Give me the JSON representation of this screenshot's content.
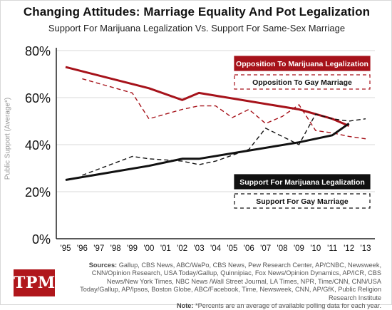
{
  "title": "Changing Attitudes: Marriage Equality And Pot Legalization",
  "subtitle": "Support For Marijuana Legalization Vs. Support For Same-Sex Marriage",
  "chart_data": {
    "type": "line",
    "title": "Changing Attitudes: Marriage Equality And Pot Legalization",
    "subtitle": "Support For Marijuana Legalization Vs. Support For Same-Sex Marriage",
    "xlabel": "",
    "ylabel": "Public Support (Average*)",
    "x": [
      "'95",
      "'96",
      "'97",
      "'98",
      "'99",
      "'00",
      "'01",
      "'02",
      "'03",
      "'04",
      "'05",
      "'06",
      "'07",
      "'08",
      "'09",
      "'10",
      "'11",
      "'12",
      "'13"
    ],
    "ylim": [
      0,
      80
    ],
    "yticks": [
      "0%",
      "20%",
      "40%",
      "60%",
      "80%"
    ],
    "grid": true,
    "series": [
      {
        "name": "Opposition To Marijuana Legalization",
        "color": "#a6121a",
        "style": "solid",
        "points": [
          [
            1995,
            73
          ],
          [
            2000,
            64
          ],
          [
            2002,
            59
          ],
          [
            2003,
            62
          ],
          [
            2009,
            55
          ],
          [
            2011,
            51
          ],
          [
            2012,
            48
          ]
        ]
      },
      {
        "name": "Opposition To Gay Marriage",
        "color": "#a6121a",
        "style": "dashed",
        "points": [
          [
            1996,
            68
          ],
          [
            1999,
            62
          ],
          [
            2000,
            51
          ],
          [
            2002,
            55
          ],
          [
            2003,
            56.5
          ],
          [
            2004,
            56.5
          ],
          [
            2005,
            51.5
          ],
          [
            2006,
            55
          ],
          [
            2007,
            49
          ],
          [
            2008,
            52
          ],
          [
            2009,
            57
          ],
          [
            2010,
            46
          ],
          [
            2011,
            45
          ],
          [
            2012,
            43.5
          ],
          [
            2013,
            42.5
          ]
        ]
      },
      {
        "name": "Support For Marijuana Legalization",
        "color": "#111111",
        "style": "solid",
        "points": [
          [
            1995,
            25
          ],
          [
            2000,
            31
          ],
          [
            2002,
            34
          ],
          [
            2003,
            34
          ],
          [
            2006,
            37.5
          ],
          [
            2009,
            41
          ],
          [
            2011,
            44
          ],
          [
            2012,
            49
          ]
        ]
      },
      {
        "name": "Support For Gay Marriage",
        "color": "#111111",
        "style": "dashed",
        "points": [
          [
            1996,
            27
          ],
          [
            1999,
            35
          ],
          [
            2000,
            34
          ],
          [
            2002,
            33
          ],
          [
            2003,
            31.5
          ],
          [
            2004,
            33
          ],
          [
            2006,
            38
          ],
          [
            2007,
            47
          ],
          [
            2009,
            40
          ],
          [
            2010,
            53
          ],
          [
            2011,
            51
          ],
          [
            2012,
            50
          ],
          [
            2013,
            51
          ]
        ]
      }
    ],
    "legend": [
      {
        "label": "Opposition To Marijuana Legalization",
        "style": "filled",
        "color": "#a6121a"
      },
      {
        "label": "Opposition To Gay Marriage",
        "style": "dashed-outline",
        "color": "#a6121a"
      },
      {
        "label": "Support For Marijuana Legalization",
        "style": "filled",
        "color": "#111111"
      },
      {
        "label": "Support For Gay Marriage",
        "style": "dashed-outline",
        "color": "#111111"
      }
    ]
  },
  "footer": {
    "sources_label": "Sources:",
    "sources_text": "Gallup, CBS News, ABC/WaPo, CBS News, Pew Research Center, AP/CNBC, Newsweek, CNN/Opinion Research, USA Today/Gallup, Quinnipiac, Fox News/Opinion Dynamics, AP/ICR, CBS News/New York Times, NBC News /Wall Street Journal, LA Times, NPR, Time/CNN, CNN/USA Today/Gallup, AP/Ipsos, Boston Globe, ABC/Facebook, Time, Newsweek, CNN, AP/GfK, Public Religion Research Institute",
    "note_label": "Note:",
    "note_text": "*Percents are an average of available polling data for each year.",
    "logo_text": "TPM"
  },
  "colors": {
    "red": "#a6121a",
    "black": "#111111",
    "grid": "#d9d9d9"
  }
}
